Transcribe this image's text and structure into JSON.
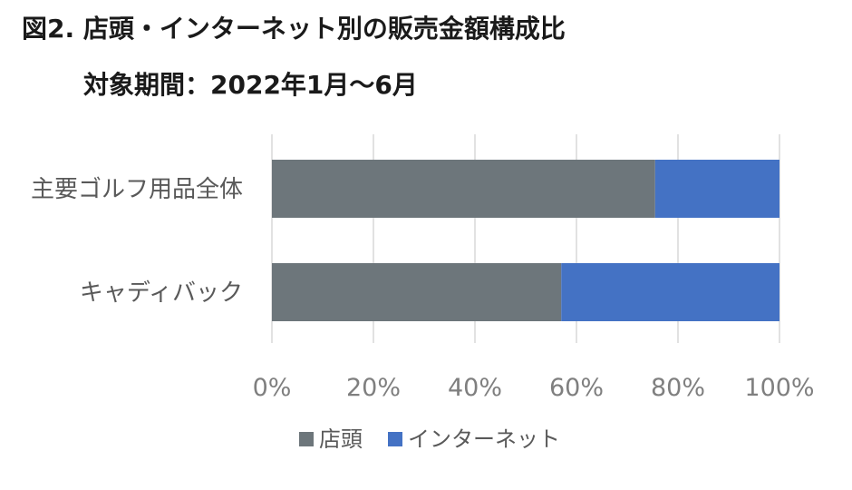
{
  "header": {
    "title": "図2. 店頭・インターネット別の販売金額構成比",
    "subtitle": "対象期間：2022年1月～6月"
  },
  "chart_data": {
    "type": "bar",
    "orientation": "horizontal",
    "stacked": true,
    "percent_stacked": true,
    "categories": [
      "主要ゴルフ用品全体",
      "キャディバック"
    ],
    "series": [
      {
        "name": "店頭",
        "color": "#6d767b",
        "values": [
          75.5,
          57
        ]
      },
      {
        "name": "インターネット",
        "color": "#4472c4",
        "values": [
          24.5,
          43
        ]
      }
    ],
    "xlim": [
      0,
      100
    ],
    "x_ticks": [
      "0%",
      "20%",
      "40%",
      "60%",
      "80%",
      "100%"
    ],
    "grid": true,
    "legend_position": "bottom"
  }
}
